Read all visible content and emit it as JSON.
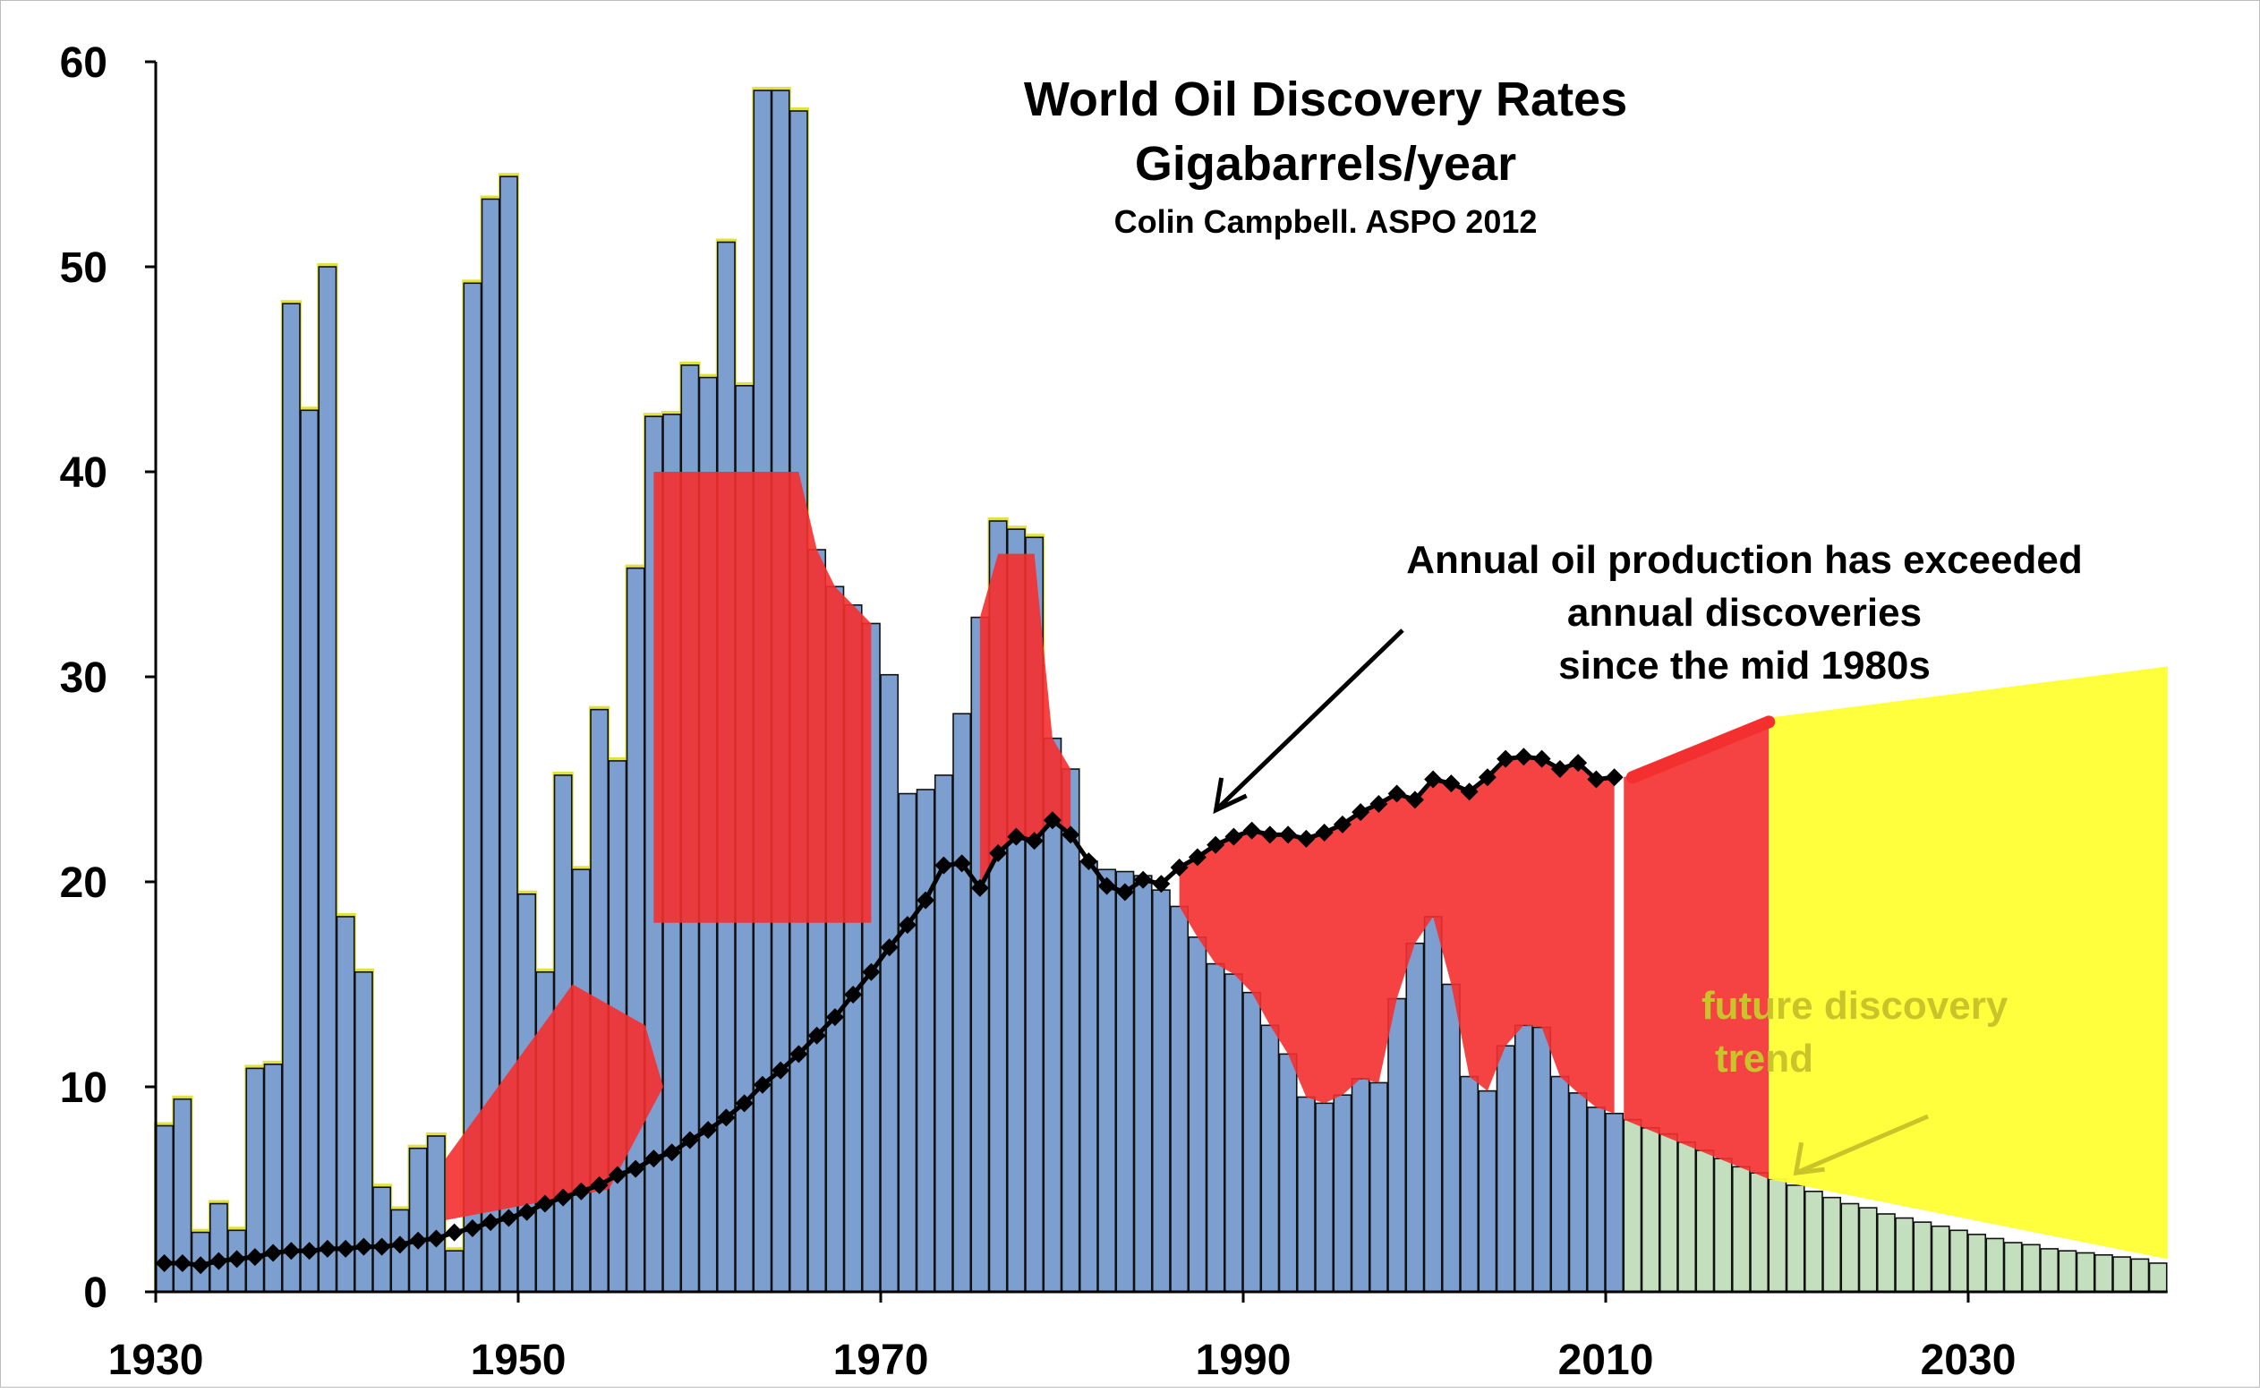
{
  "chart_data": {
    "type": "bar",
    "title": "World Oil Discovery Rates",
    "subtitle": "Gigabarrels/year",
    "credit": "Colin Campbell. ASPO 2012",
    "xlabel": "",
    "ylabel": "",
    "xlim": [
      1930,
      2041
    ],
    "ylim": [
      0,
      60
    ],
    "grid": false,
    "x_ticks": [
      "1930",
      "1950",
      "1970",
      "1990",
      "2010",
      "2030"
    ],
    "y_ticks": [
      "0",
      "10",
      "20",
      "30",
      "40",
      "50",
      "60"
    ],
    "colors": {
      "discovery_bar": "#7c9fcf",
      "projected_bar": "#c3dfbd",
      "yellow_highlight": "#e0e02c",
      "red_highlight": "#f42f2f",
      "production": "#000000",
      "future_region": "#ffff33"
    },
    "series": [
      {
        "kind": "bar",
        "period": "historic",
        "x": [
          1930,
          1931,
          1932,
          1933,
          1934,
          1935,
          1936,
          1937,
          1938,
          1939,
          1940,
          1941,
          1942,
          1943,
          1944,
          1945,
          1946,
          1947,
          1948,
          1949,
          1950,
          1951,
          1952,
          1953,
          1954,
          1955,
          1956,
          1957,
          1958,
          1959,
          1960,
          1961,
          1962,
          1963,
          1964,
          1965,
          1966,
          1967,
          1968,
          1969,
          1970,
          1971,
          1972,
          1973,
          1974,
          1975,
          1976,
          1977,
          1978,
          1979,
          1980,
          1981,
          1982,
          1983,
          1984,
          1985,
          1986,
          1987,
          1988,
          1989,
          1990,
          1991,
          1992,
          1993,
          1994,
          1995,
          1996,
          1997,
          1998,
          1999,
          2000,
          2001,
          2002,
          2003,
          2004,
          2005,
          2006,
          2007,
          2008,
          2009,
          2010
        ],
        "values": [
          8.1,
          9.4,
          2.9,
          4.3,
          3.0,
          10.9,
          11.1,
          48.2,
          43.0,
          50.0,
          18.3,
          15.6,
          5.1,
          4.0,
          7.0,
          7.6,
          2.0,
          49.2,
          53.3,
          54.4,
          19.4,
          15.6,
          25.2,
          20.6,
          28.4,
          25.9,
          35.3,
          42.7,
          42.8,
          45.2,
          44.6,
          51.2,
          44.2,
          58.6,
          58.6,
          57.6,
          36.2,
          34.4,
          33.5,
          32.6,
          30.1,
          24.3,
          24.5,
          25.2,
          28.2,
          32.9,
          37.6,
          37.2,
          36.8,
          27.0,
          25.5,
          21.0,
          20.6,
          20.5,
          20.3,
          19.6,
          18.8,
          17.3,
          16.0,
          15.5,
          14.6,
          13.0,
          11.6,
          9.5,
          9.2,
          9.6,
          10.4,
          10.2,
          14.3,
          17.0,
          18.3,
          15.0,
          10.5,
          9.8,
          12.0,
          13.0,
          12.9,
          10.5,
          9.7,
          9.0,
          8.7
        ]
      },
      {
        "kind": "bar",
        "period": "projected",
        "x": [
          2011,
          2012,
          2013,
          2014,
          2015,
          2016,
          2017,
          2018,
          2019,
          2020,
          2021,
          2022,
          2023,
          2024,
          2025,
          2026,
          2027,
          2028,
          2029,
          2030,
          2031,
          2032,
          2033,
          2034,
          2035,
          2036,
          2037,
          2038,
          2039,
          2040
        ],
        "values": [
          8.4,
          8.0,
          7.7,
          7.3,
          6.9,
          6.5,
          6.1,
          5.8,
          5.5,
          5.2,
          4.9,
          4.6,
          4.3,
          4.1,
          3.8,
          3.6,
          3.4,
          3.2,
          3.0,
          2.8,
          2.6,
          2.4,
          2.3,
          2.1,
          2.0,
          1.9,
          1.8,
          1.7,
          1.6,
          1.4
        ]
      },
      {
        "kind": "line",
        "period": "production",
        "x": [
          1930,
          1931,
          1932,
          1933,
          1934,
          1935,
          1936,
          1937,
          1938,
          1939,
          1940,
          1941,
          1942,
          1943,
          1944,
          1945,
          1946,
          1947,
          1948,
          1949,
          1950,
          1951,
          1952,
          1953,
          1954,
          1955,
          1956,
          1957,
          1958,
          1959,
          1960,
          1961,
          1962,
          1963,
          1964,
          1965,
          1966,
          1967,
          1968,
          1969,
          1970,
          1971,
          1972,
          1973,
          1974,
          1975,
          1976,
          1977,
          1978,
          1979,
          1980,
          1981,
          1982,
          1983,
          1984,
          1985,
          1986,
          1987,
          1988,
          1989,
          1990,
          1991,
          1992,
          1993,
          1994,
          1995,
          1996,
          1997,
          1998,
          1999,
          2000,
          2001,
          2002,
          2003,
          2004,
          2005,
          2006,
          2007,
          2008,
          2009,
          2010
        ],
        "values": [
          1.4,
          1.4,
          1.3,
          1.5,
          1.6,
          1.7,
          1.9,
          2.0,
          2.0,
          2.1,
          2.1,
          2.2,
          2.2,
          2.3,
          2.5,
          2.6,
          2.9,
          3.1,
          3.4,
          3.6,
          3.9,
          4.3,
          4.6,
          4.9,
          5.2,
          5.7,
          6.0,
          6.5,
          6.8,
          7.4,
          7.9,
          8.5,
          9.2,
          10.1,
          10.8,
          11.6,
          12.5,
          13.4,
          14.5,
          15.6,
          16.8,
          17.9,
          19.1,
          20.8,
          20.9,
          19.7,
          21.4,
          22.2,
          22.0,
          23.0,
          22.3,
          21.0,
          19.8,
          19.5,
          20.1,
          19.9,
          20.7,
          21.2,
          21.8,
          22.2,
          22.5,
          22.3,
          22.3,
          22.1,
          22.4,
          22.8,
          23.4,
          23.8,
          24.3,
          24.0,
          25.0,
          24.8,
          24.4,
          25.1,
          26.0,
          26.1,
          26.0,
          25.5,
          25.8,
          25.0,
          25.1
        ]
      },
      {
        "kind": "line",
        "period": "production-forecast",
        "x": [
          2011,
          2019
        ],
        "values": [
          25.1,
          27.8
        ]
      }
    ],
    "annotations": [
      {
        "text": "Annual oil production has exceeded",
        "target": {
          "x": 1988.5,
          "y": 23.5
        }
      },
      {
        "text": "annual discoveries"
      },
      {
        "text": "since the mid 1980s"
      },
      {
        "text": "future discovery",
        "target": {
          "x": 2020.5,
          "y": 5.8
        }
      },
      {
        "text": "trend"
      }
    ]
  }
}
